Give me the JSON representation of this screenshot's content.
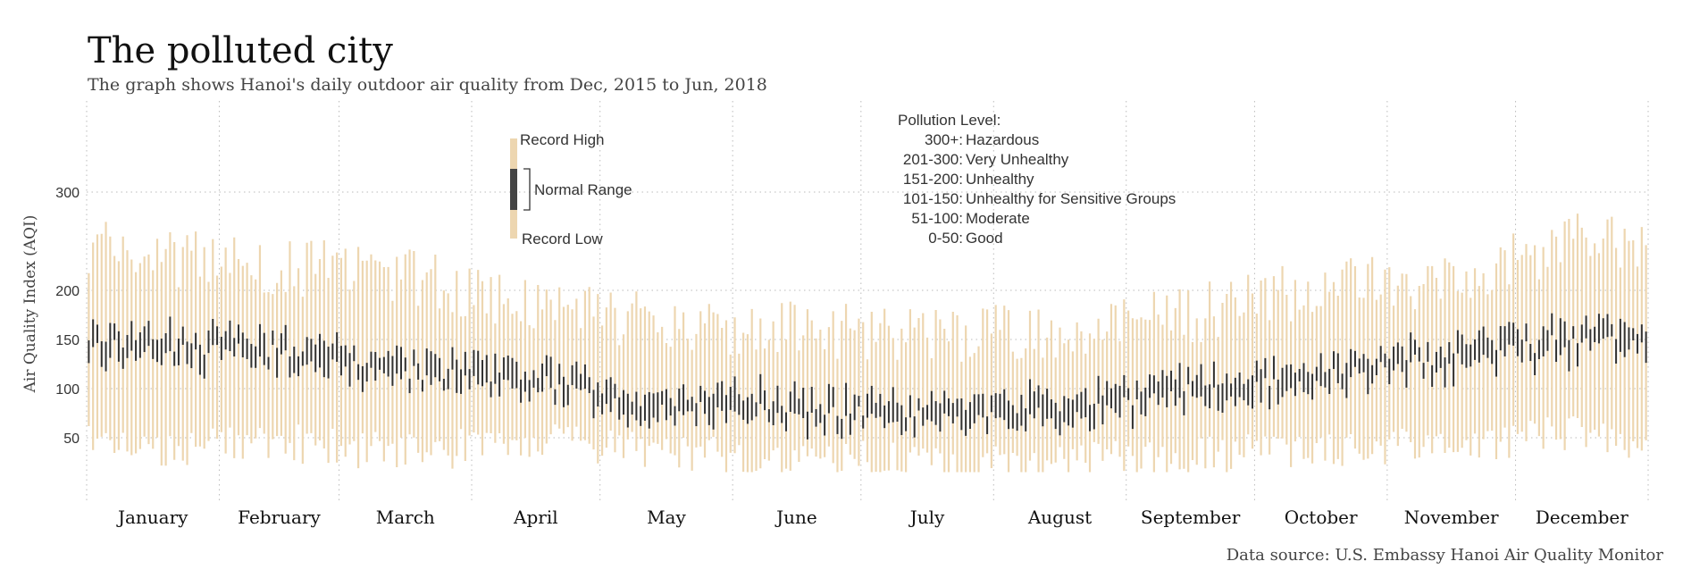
{
  "title": "The polluted city",
  "subtitle": "The graph shows Hanoi's daily outdoor air quality from Dec, 2015 to Jun, 2018",
  "source": "Data source: U.S. Embassy Hanoi Air Quality Monitor",
  "chart_data": {
    "type": "range-bar",
    "ylabel": "Air Quality Index (AQI)",
    "ylim": [
      0,
      360
    ],
    "yticks": [
      50,
      100,
      150,
      200,
      300
    ],
    "months": [
      "January",
      "February",
      "March",
      "April",
      "May",
      "June",
      "July",
      "August",
      "September",
      "October",
      "November",
      "December"
    ],
    "grid": true,
    "colors": {
      "record": "#EDD6B0",
      "normal": "#333333",
      "grid": "#bbbbbb"
    },
    "legend": {
      "record_high": "Record High",
      "normal_range": "Normal Range",
      "record_low": "Record Low"
    },
    "pollution_levels": {
      "title": "Pollution Level:",
      "items": [
        {
          "range": "300+:",
          "label": "Hazardous"
        },
        {
          "range": "201-300:",
          "label": "Very Unhealthy"
        },
        {
          "range": "151-200:",
          "label": "Unhealthy"
        },
        {
          "range": "101-150:",
          "label": "Unhealthy for Sensitive Groups"
        },
        {
          "range": "51-100:",
          "label": "Moderate"
        },
        {
          "range": "0-50:",
          "label": "Good"
        }
      ]
    },
    "monthly_profile": {
      "months": [
        "January",
        "February",
        "March",
        "April",
        "May",
        "June",
        "July",
        "August",
        "September",
        "October",
        "November",
        "December"
      ],
      "record_high": [
        235,
        225,
        215,
        185,
        165,
        160,
        155,
        160,
        175,
        205,
        205,
        260
      ],
      "record_low": [
        35,
        45,
        35,
        45,
        35,
        30,
        25,
        25,
        30,
        40,
        40,
        55
      ],
      "normal_high": [
        160,
        150,
        130,
        120,
        95,
        95,
        85,
        95,
        115,
        130,
        145,
        165
      ],
      "normal_low": [
        130,
        125,
        105,
        100,
        75,
        70,
        55,
        65,
        85,
        105,
        115,
        135
      ]
    }
  }
}
